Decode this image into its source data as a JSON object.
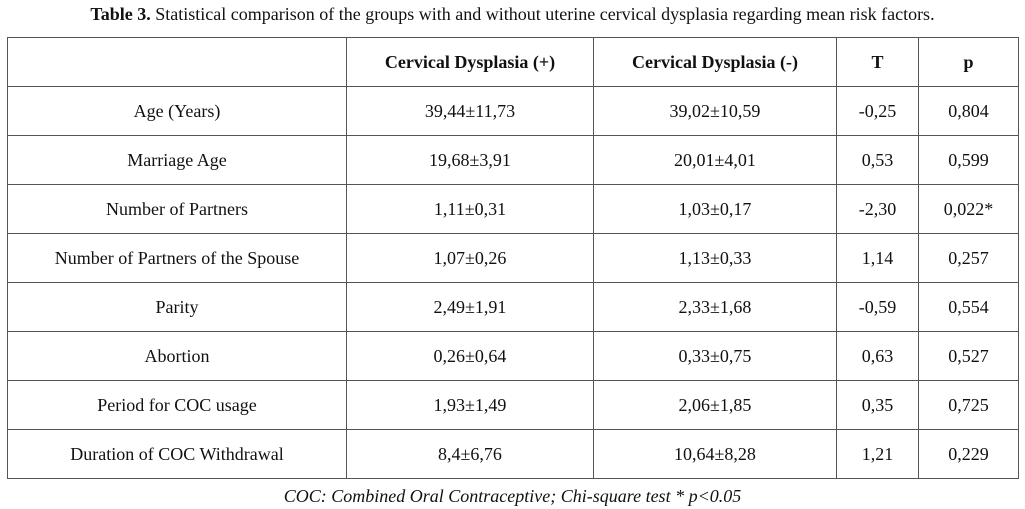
{
  "caption": {
    "label": "Table 3.",
    "text": " Statistical comparison of the groups with and without uterine cervical dysplasia regarding mean risk factors."
  },
  "table": {
    "headers": [
      "",
      "Cervical Dysplasia (+)",
      "Cervical Dysplasia (-)",
      "T",
      "p"
    ],
    "rows": [
      [
        "Age (Years)",
        "39,44±11,73",
        "39,02±10,59",
        "-0,25",
        "0,804"
      ],
      [
        "Marriage Age",
        "19,68±3,91",
        "20,01±4,01",
        "0,53",
        "0,599"
      ],
      [
        "Number of Partners",
        "1,11±0,31",
        "1,03±0,17",
        "-2,30",
        "0,022*"
      ],
      [
        "Number of Partners of the Spouse",
        "1,07±0,26",
        "1,13±0,33",
        "1,14",
        "0,257"
      ],
      [
        "Parity",
        "2,49±1,91",
        "2,33±1,68",
        "-0,59",
        "0,554"
      ],
      [
        "Abortion",
        "0,26±0,64",
        "0,33±0,75",
        "0,63",
        "0,527"
      ],
      [
        "Period for COC usage",
        "1,93±1,49",
        "2,06±1,85",
        "0,35",
        "0,725"
      ],
      [
        "Duration of COC Withdrawal",
        "8,4±6,76",
        "10,64±8,28",
        "1,21",
        "0,229"
      ]
    ]
  },
  "footnote": "COC: Combined Oral Contraceptive; Chi-square test * p<0.05"
}
